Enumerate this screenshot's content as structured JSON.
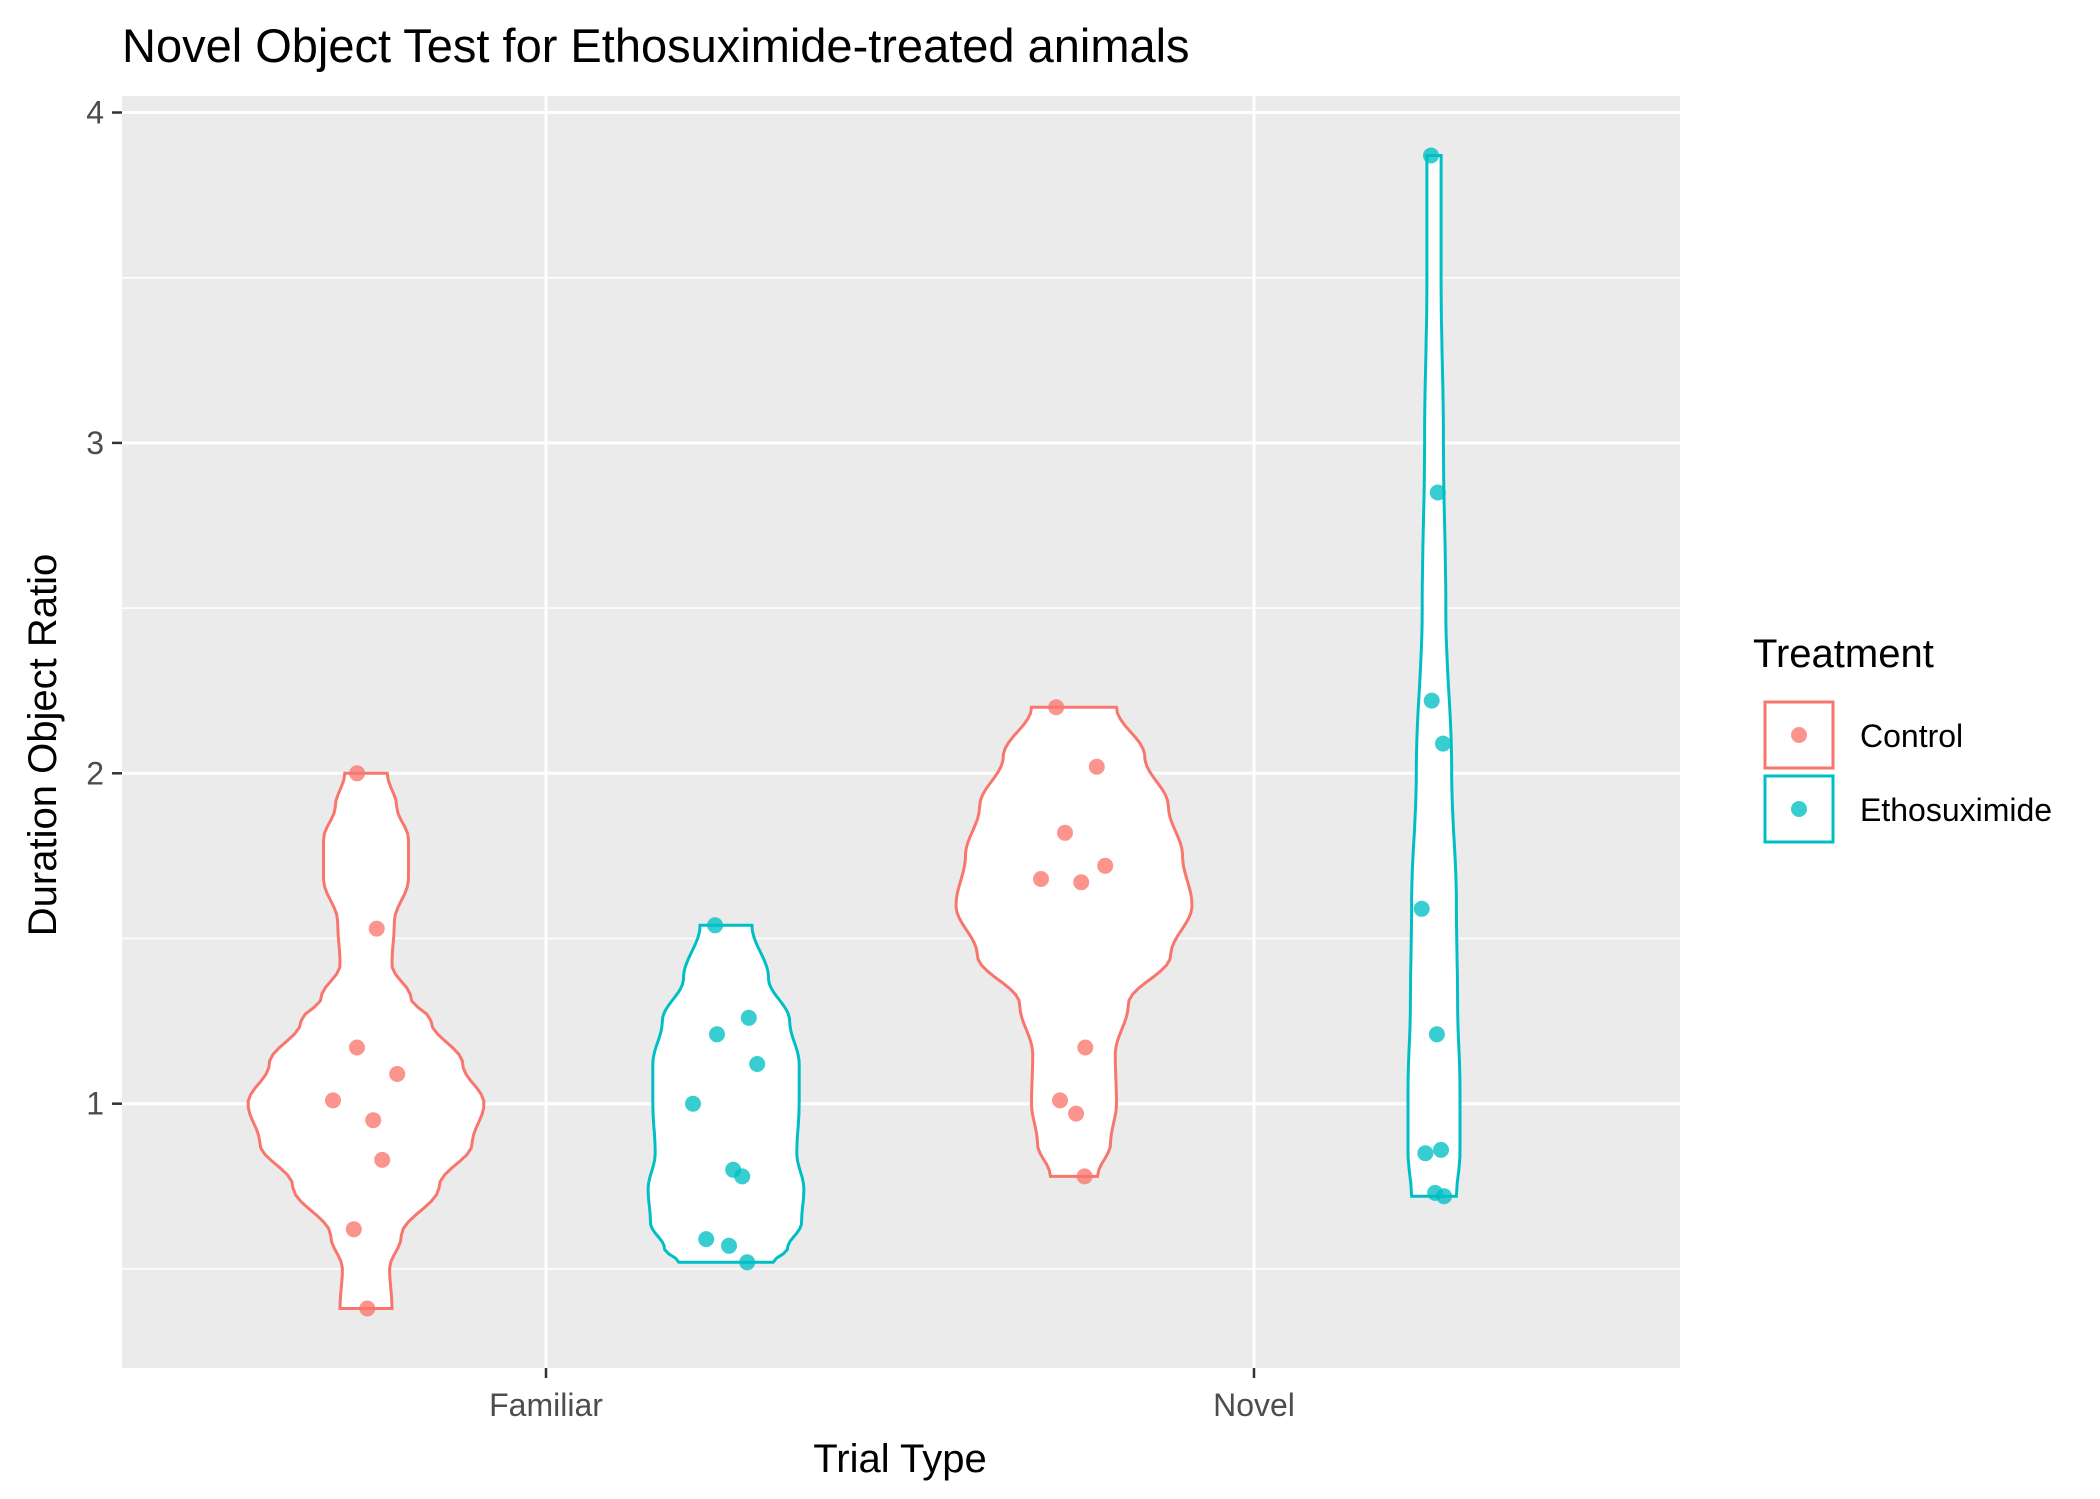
{
  "chart_data": {
    "type": "violin",
    "title": "Novel Object Test for Ethosuximide-treated animals",
    "xlabel": "Trial Type",
    "ylabel": "Duration Object Ratio",
    "categories": [
      "Familiar",
      "Novel"
    ],
    "ylim": [
      0.2,
      4.05
    ],
    "yticks": [
      1,
      2,
      3,
      4
    ],
    "grid": true,
    "legend": {
      "title": "Treatment",
      "placement": "right",
      "entries": [
        "Control",
        "Ethosuximide"
      ]
    },
    "colors": {
      "Control": "#F8766D",
      "Ethosuximide": "#00BFC4",
      "panel": "#EBEBEB",
      "gridline": "#FFFFFF"
    },
    "series": [
      {
        "name": "Control",
        "groups": [
          {
            "category": "Familiar",
            "range": [
              0.38,
              2.0
            ],
            "points": [
              2.0,
              1.53,
              1.17,
              1.09,
              1.01,
              0.95,
              0.83,
              0.62,
              0.38
            ],
            "density": [
              [
                0.38,
                0.22
              ],
              [
                0.5,
                0.2
              ],
              [
                0.6,
                0.3
              ],
              [
                0.75,
                0.62
              ],
              [
                0.88,
                0.9
              ],
              [
                1.0,
                1.0
              ],
              [
                1.12,
                0.82
              ],
              [
                1.25,
                0.55
              ],
              [
                1.32,
                0.38
              ],
              [
                1.42,
                0.22
              ],
              [
                1.55,
                0.24
              ],
              [
                1.68,
                0.36
              ],
              [
                1.8,
                0.36
              ],
              [
                1.9,
                0.26
              ],
              [
                2.0,
                0.18
              ]
            ]
          },
          {
            "category": "Novel",
            "range": [
              0.78,
              2.2
            ],
            "points": [
              2.2,
              2.02,
              1.82,
              1.72,
              1.68,
              1.67,
              1.17,
              1.01,
              0.97,
              0.78
            ],
            "density": [
              [
                0.78,
                0.2
              ],
              [
                0.88,
                0.31
              ],
              [
                1.0,
                0.36
              ],
              [
                1.15,
                0.35
              ],
              [
                1.3,
                0.46
              ],
              [
                1.45,
                0.82
              ],
              [
                1.6,
                1.0
              ],
              [
                1.75,
                0.92
              ],
              [
                1.9,
                0.8
              ],
              [
                2.05,
                0.6
              ],
              [
                2.2,
                0.36
              ]
            ]
          }
        ]
      },
      {
        "name": "Ethosuximide",
        "groups": [
          {
            "category": "Familiar",
            "range": [
              0.52,
              1.54
            ],
            "points": [
              1.54,
              1.26,
              1.21,
              1.12,
              1.0,
              0.8,
              0.78,
              0.59,
              0.57,
              0.52
            ],
            "density": [
              [
                0.52,
                0.4
              ],
              [
                0.56,
                0.52
              ],
              [
                0.64,
                0.64
              ],
              [
                0.74,
                0.66
              ],
              [
                0.85,
                0.6
              ],
              [
                1.0,
                0.62
              ],
              [
                1.12,
                0.62
              ],
              [
                1.25,
                0.54
              ],
              [
                1.38,
                0.36
              ],
              [
                1.54,
                0.22
              ]
            ]
          },
          {
            "category": "Novel",
            "range": [
              0.72,
              3.87
            ],
            "points": [
              3.87,
              2.85,
              2.22,
              2.09,
              1.59,
              1.21,
              0.86,
              0.85,
              0.73,
              0.72
            ],
            "density": [
              [
                0.72,
                0.19
              ],
              [
                0.85,
                0.22
              ],
              [
                1.05,
                0.22
              ],
              [
                1.3,
                0.2
              ],
              [
                1.6,
                0.19
              ],
              [
                2.0,
                0.15
              ],
              [
                2.5,
                0.1
              ],
              [
                3.0,
                0.08
              ],
              [
                3.5,
                0.06
              ],
              [
                3.87,
                0.06
              ]
            ]
          }
        ]
      }
    ]
  }
}
